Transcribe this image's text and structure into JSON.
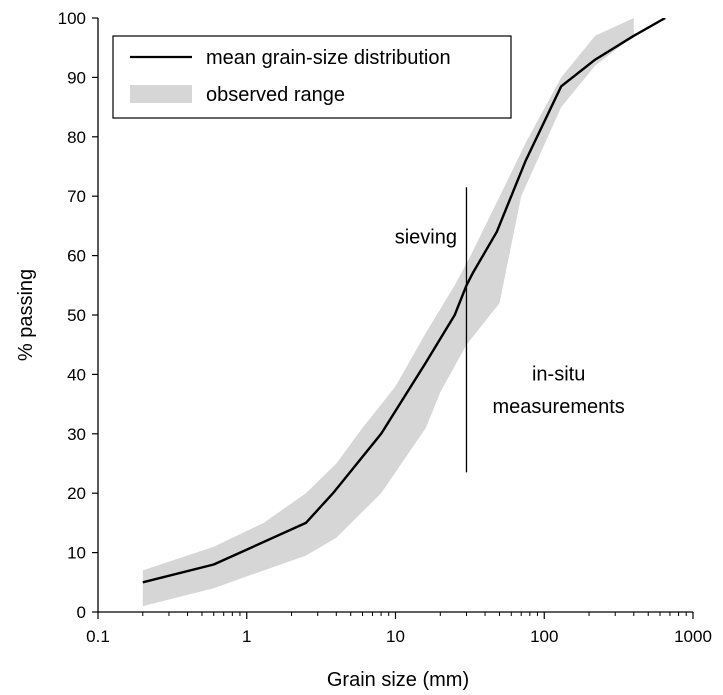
{
  "chart_data": {
    "type": "line",
    "xscale": "log",
    "xlim": [
      0.1,
      1000
    ],
    "ylim": [
      0,
      100
    ],
    "grid": false,
    "legend_position": "top-left",
    "xlabel": "Grain size (mm)",
    "ylabel": "% passing",
    "x_ticks": [
      {
        "value": 0.1,
        "label": "0.1"
      },
      {
        "value": 1,
        "label": "1"
      },
      {
        "value": 10,
        "label": "10"
      },
      {
        "value": 100,
        "label": "100"
      },
      {
        "value": 1000,
        "label": "1000"
      }
    ],
    "y_ticks": [
      {
        "value": 0,
        "label": "0"
      },
      {
        "value": 10,
        "label": "10"
      },
      {
        "value": 20,
        "label": "20"
      },
      {
        "value": 30,
        "label": "30"
      },
      {
        "value": 40,
        "label": "40"
      },
      {
        "value": 50,
        "label": "50"
      },
      {
        "value": 60,
        "label": "60"
      },
      {
        "value": 70,
        "label": "70"
      },
      {
        "value": 80,
        "label": "80"
      },
      {
        "value": 90,
        "label": "90"
      },
      {
        "value": 100,
        "label": "100"
      }
    ],
    "series": [
      {
        "name": "mean grain-size distribution",
        "color": "#000000",
        "points": [
          [
            0.2,
            5
          ],
          [
            0.6,
            8
          ],
          [
            1.0,
            10.5
          ],
          [
            2.5,
            15
          ],
          [
            3.8,
            20
          ],
          [
            8,
            30
          ],
          [
            16,
            42
          ],
          [
            25,
            50
          ],
          [
            30,
            55
          ],
          [
            33,
            57
          ],
          [
            48,
            64
          ],
          [
            75,
            76
          ],
          [
            130,
            88.5
          ],
          [
            220,
            93
          ],
          [
            400,
            97
          ],
          [
            650,
            100
          ]
        ]
      }
    ],
    "range": {
      "name": "observed range",
      "color": "#d6d6d6",
      "upper": [
        [
          0.2,
          7
        ],
        [
          0.6,
          11
        ],
        [
          1.3,
          15
        ],
        [
          2.5,
          20
        ],
        [
          4,
          25
        ],
        [
          6,
          31
        ],
        [
          10,
          38
        ],
        [
          16,
          47
        ],
        [
          25,
          55
        ],
        [
          32,
          60
        ],
        [
          55,
          72
        ],
        [
          75,
          79
        ],
        [
          130,
          90
        ],
        [
          220,
          97
        ],
        [
          400,
          100
        ]
      ],
      "lower": [
        [
          400,
          97
        ],
        [
          220,
          92
        ],
        [
          130,
          85
        ],
        [
          70,
          70
        ],
        [
          50,
          52
        ],
        [
          30,
          45
        ],
        [
          20,
          37
        ],
        [
          16,
          31
        ],
        [
          8,
          20
        ],
        [
          4,
          12.5
        ],
        [
          2.5,
          9.5
        ],
        [
          1,
          6
        ],
        [
          0.6,
          4
        ],
        [
          0.2,
          1
        ]
      ]
    },
    "vertical_line": {
      "x": 30,
      "y_from": 23.5,
      "y_to": 71.5
    },
    "annotations": [
      {
        "text": "sieving",
        "x": 16,
        "y": 62
      },
      {
        "text": "in-situ",
        "x": 125,
        "y": 39
      },
      {
        "text": "measurements",
        "x": 125,
        "y": 33.5
      }
    ]
  }
}
